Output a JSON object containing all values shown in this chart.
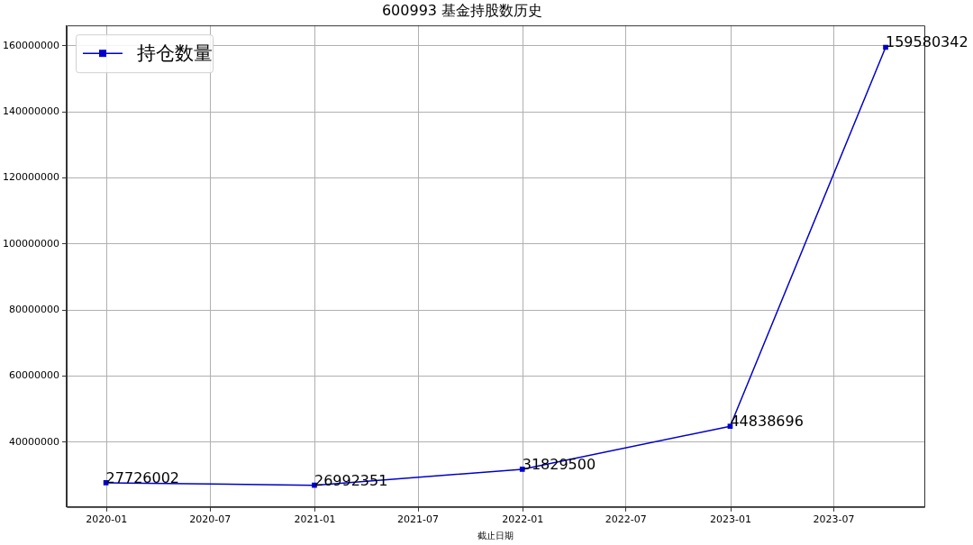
{
  "chart_data": {
    "type": "line",
    "title": "600993 基金持股数历史",
    "xlabel": "截止日期",
    "x": [
      "2019-12-31",
      "2020-12-31",
      "2021-12-31",
      "2022-12-31",
      "2023-09-30"
    ],
    "series": [
      {
        "name": "持仓数量",
        "color": "#0000cc",
        "values": [
          27726002,
          26992351,
          31829500,
          44838696,
          159580342
        ]
      }
    ],
    "xlim": [
      "2019-10-23",
      "2023-12-07"
    ],
    "xticks": [
      "2020-01",
      "2020-07",
      "2021-01",
      "2021-07",
      "2022-01",
      "2022-07",
      "2023-01",
      "2023-07"
    ],
    "ylim": [
      20400000,
      166200000
    ],
    "yticks": [
      40000000,
      60000000,
      80000000,
      100000000,
      120000000,
      140000000,
      160000000
    ],
    "grid": true,
    "legend": "top left",
    "marker": "square",
    "line_style": "solid",
    "data_labels": true
  }
}
